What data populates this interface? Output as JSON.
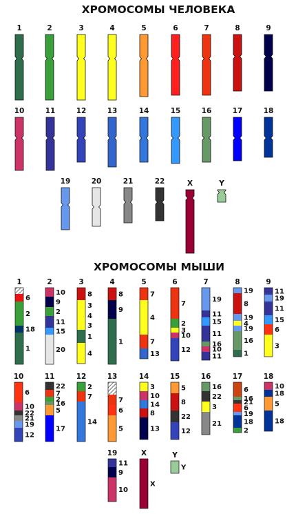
{
  "human": {
    "title": "ХРОМОСОМЫ ЧЕЛОВЕКА",
    "chromosomes": [
      {
        "label": "1",
        "color": "#2f6e4d"
      },
      {
        "label": "2",
        "color": "#3aa13a"
      },
      {
        "label": "3",
        "color": "#ffff1f"
      },
      {
        "label": "4",
        "color": "#ffff1f"
      },
      {
        "label": "5",
        "color": "#ff9933"
      },
      {
        "label": "6",
        "color": "#ff1f1f"
      },
      {
        "label": "7",
        "color": "#ee3311"
      },
      {
        "label": "8",
        "color": "#cc1111"
      },
      {
        "label": "9",
        "color": "#00004d"
      },
      {
        "label": "10",
        "color": "#cc3366"
      },
      {
        "label": "11",
        "color": "#333399"
      },
      {
        "label": "12",
        "color": "#3344bb"
      },
      {
        "label": "13",
        "color": "#3366cc"
      },
      {
        "label": "14",
        "color": "#3377dd"
      },
      {
        "label": "15",
        "color": "#3399ff"
      },
      {
        "label": "16",
        "color": "#669966"
      },
      {
        "label": "17",
        "color": "#0000ff"
      },
      {
        "label": "18",
        "color": "#003399"
      },
      {
        "label": "19",
        "color": "#6699ee"
      },
      {
        "label": "20",
        "color": "#e6e6e6"
      },
      {
        "label": "21",
        "color": "#888888"
      },
      {
        "label": "22",
        "color": "#333333"
      },
      {
        "label": "X",
        "color": "#990033"
      },
      {
        "label": "Y",
        "color": "#99cc99"
      }
    ]
  },
  "mouse": {
    "title": "ХРОМОСОМЫ МЫШИ",
    "chromosomes": [
      {
        "label": "1",
        "segments": [
          {
            "label": "",
            "color": "hatch"
          },
          {
            "label": "6",
            "color": "#ee1111"
          },
          {
            "label": "2",
            "color": "#3aa13a"
          },
          {
            "label": "18",
            "color": "#003366"
          },
          {
            "label": "1",
            "color": "#2f6e4d"
          }
        ]
      },
      {
        "label": "2",
        "segments": [
          {
            "label": "10",
            "color": "#cc3366"
          },
          {
            "label": "9",
            "color": "#00004d"
          },
          {
            "label": "2",
            "color": "#3aa13a"
          },
          {
            "label": "11",
            "color": "#333399"
          },
          {
            "label": "15",
            "color": "#3399ff"
          },
          {
            "label": "20",
            "color": "#e6e6e6"
          }
        ]
      },
      {
        "label": "3",
        "segments": [
          {
            "label": "8",
            "color": "#cc1111"
          },
          {
            "label": "3",
            "color": "#ffff1f"
          },
          {
            "label": "4",
            "color": "#ffff1f"
          },
          {
            "label": "3",
            "color": "#ffff1f"
          },
          {
            "label": "1",
            "color": "#2f6e4d"
          },
          {
            "label": "4",
            "color": "#ffff1f"
          }
        ]
      },
      {
        "label": "4",
        "segments": [
          {
            "label": "8",
            "color": "#cc1111"
          },
          {
            "label": "9",
            "color": "#00004d"
          },
          {
            "label": "1",
            "color": "#2f6e4d"
          }
        ]
      },
      {
        "label": "5",
        "segments": [
          {
            "label": "7",
            "color": "#ee3311"
          },
          {
            "label": "4",
            "color": "#ffff1f"
          },
          {
            "label": "7",
            "color": "#ee3311"
          },
          {
            "label": "13",
            "color": "#3366cc"
          }
        ]
      },
      {
        "label": "6",
        "segments": [
          {
            "label": "7",
            "color": "#ee3311"
          },
          {
            "label": "2",
            "color": "#3aa13a"
          },
          {
            "label": "3",
            "color": "#ffff1f"
          },
          {
            "label": "10",
            "color": "#cc3366"
          },
          {
            "label": "12",
            "color": "#3344bb"
          }
        ]
      },
      {
        "label": "7",
        "segments": [
          {
            "label": "19",
            "color": "#6699ee"
          },
          {
            "label": "11",
            "color": "#333399"
          },
          {
            "label": "15",
            "color": "#3399ff"
          },
          {
            "label": "11",
            "color": "#333399"
          },
          {
            "label": "16",
            "color": "#669966"
          },
          {
            "label": "10",
            "color": "#cc3366"
          },
          {
            "label": "11",
            "color": "#333399"
          }
        ]
      },
      {
        "label": "8",
        "segments": [
          {
            "label": "19",
            "color": "#6699ee"
          },
          {
            "label": "8",
            "color": "#cc1111"
          },
          {
            "label": "19",
            "color": "#6699ee"
          },
          {
            "label": "4",
            "color": "#ffff1f"
          },
          {
            "label": "19",
            "color": "#6699ee"
          },
          {
            "label": "16",
            "color": "#669966"
          },
          {
            "label": "1",
            "color": "#2f6e4d"
          }
        ]
      },
      {
        "label": "9",
        "segments": [
          {
            "label": "11",
            "color": "#333399"
          },
          {
            "label": "19",
            "color": "#6699ee"
          },
          {
            "label": "11",
            "color": "#333399"
          },
          {
            "label": "15",
            "color": "#3399ff"
          },
          {
            "label": "6",
            "color": "#ff3311"
          },
          {
            "label": "3",
            "color": "#ffff1f"
          }
        ]
      },
      {
        "label": "10",
        "segments": [
          {
            "label": "6",
            "color": "#ff3311"
          },
          {
            "label": "10",
            "color": "#cc3366"
          },
          {
            "label": "22",
            "color": "#333333"
          },
          {
            "label": "21",
            "color": "#888888"
          },
          {
            "label": "19",
            "color": "#6699ee"
          },
          {
            "label": "12",
            "color": "#3344bb"
          }
        ]
      },
      {
        "label": "11",
        "segments": [
          {
            "label": "22",
            "color": "#333333"
          },
          {
            "label": "7",
            "color": "#ee3311"
          },
          {
            "label": "2",
            "color": "#3aa13a"
          },
          {
            "label": "16",
            "color": "#669966"
          },
          {
            "label": "5",
            "color": "#ff9933"
          },
          {
            "label": "17",
            "color": "#0000ff"
          }
        ]
      },
      {
        "label": "12",
        "segments": [
          {
            "label": "2",
            "color": "#3aa13a"
          },
          {
            "label": "7",
            "color": "#ee3311"
          },
          {
            "label": "14",
            "color": "#3377dd"
          }
        ]
      },
      {
        "label": "13",
        "segments": [
          {
            "label": "",
            "color": "hatch"
          },
          {
            "label": "7",
            "color": "#ee3311"
          },
          {
            "label": "6",
            "color": "#ff3311"
          },
          {
            "label": "5",
            "color": "#ff9933"
          }
        ]
      },
      {
        "label": "14",
        "segments": [
          {
            "label": "3",
            "color": "#ffff1f"
          },
          {
            "label": "10",
            "color": "#cc3366"
          },
          {
            "label": "14",
            "color": "#3377dd"
          },
          {
            "label": "8",
            "color": "#cc1111"
          },
          {
            "label": "13",
            "color": "#00004d"
          }
        ]
      },
      {
        "label": "15",
        "segments": [
          {
            "label": "5",
            "color": "#ff9933"
          },
          {
            "label": "8",
            "color": "#cc1111"
          },
          {
            "label": "22",
            "color": "#333333"
          },
          {
            "label": "12",
            "color": "#3344bb"
          }
        ]
      },
      {
        "label": "16",
        "segments": [
          {
            "label": "16",
            "color": "#669966"
          },
          {
            "label": "22",
            "color": "#333333"
          },
          {
            "label": "3",
            "color": "#ffff1f"
          },
          {
            "label": "21",
            "color": "#888888"
          }
        ]
      },
      {
        "label": "17",
        "segments": [
          {
            "label": "6",
            "color": "#cc4411"
          },
          {
            "label": "16",
            "color": "#669966"
          },
          {
            "label": "21",
            "color": "#333333"
          },
          {
            "label": "6",
            "color": "#ff3311"
          },
          {
            "label": "19",
            "color": "#6699ee"
          },
          {
            "label": "18",
            "color": "#003399"
          },
          {
            "label": "2",
            "color": "#3aa13a"
          }
        ]
      },
      {
        "label": "18",
        "segments": [
          {
            "label": "10",
            "color": "#cc3366"
          },
          {
            "label": "18",
            "color": "#003399"
          },
          {
            "label": "5",
            "color": "#ff9933"
          },
          {
            "label": "18",
            "color": "#003399"
          }
        ]
      },
      {
        "label": "19",
        "segments": [
          {
            "label": "11",
            "color": "#333399"
          },
          {
            "label": "9",
            "color": "#00004d"
          },
          {
            "label": "10",
            "color": "#cc3366"
          }
        ]
      },
      {
        "label": "X",
        "segments": [
          {
            "label": "X",
            "color": "#990033"
          }
        ]
      },
      {
        "label": "Y",
        "segments": [
          {
            "label": "Y",
            "color": "#99cc99"
          }
        ]
      }
    ]
  }
}
